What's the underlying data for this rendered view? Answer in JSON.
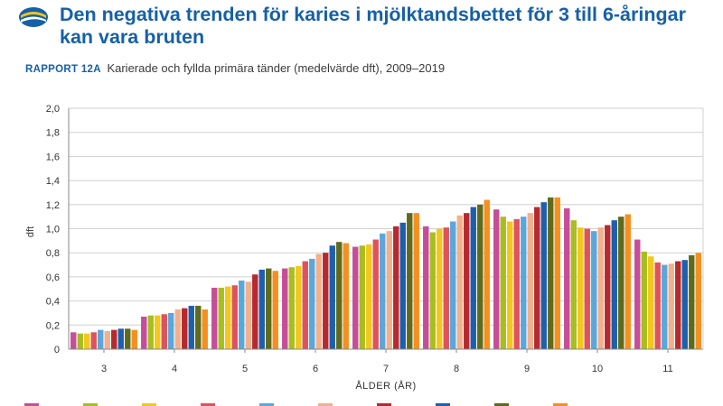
{
  "header": {
    "title": "Den negativa trenden för karies i mjölktandsbettet för 3 till 6-åringar kan vara bruten",
    "subtitle_tag": "RAPPORT 12A",
    "subtitle": "Karierade och fyllda primära tänder (medelvärde dft), 2009–2019"
  },
  "chart_data": {
    "type": "bar",
    "xlabel": "ÅLDER (ÅR)",
    "ylabel": "dft",
    "ylim": [
      0,
      2.0
    ],
    "yticks": [
      "0",
      "0,2",
      "0,4",
      "0,6",
      "0,8",
      "1,0",
      "1,2",
      "1,4",
      "1,6",
      "1,8",
      "2,0"
    ],
    "grid": true,
    "legend_position": "bottom",
    "categories": [
      "3",
      "4",
      "5",
      "6",
      "7",
      "8",
      "9",
      "10",
      "11"
    ],
    "series": [
      {
        "color": "#c64d9a",
        "values": [
          0.14,
          0.27,
          0.51,
          0.67,
          0.85,
          1.02,
          1.16,
          1.17,
          0.91
        ]
      },
      {
        "color": "#a8be1e",
        "values": [
          0.13,
          0.28,
          0.51,
          0.68,
          0.86,
          0.97,
          1.1,
          1.07,
          0.81
        ]
      },
      {
        "color": "#f2c81f",
        "values": [
          0.13,
          0.28,
          0.52,
          0.69,
          0.87,
          1.0,
          1.06,
          1.01,
          0.77
        ]
      },
      {
        "color": "#e0525a",
        "values": [
          0.14,
          0.29,
          0.53,
          0.73,
          0.91,
          1.01,
          1.08,
          1.0,
          0.72
        ]
      },
      {
        "color": "#5aa7dc",
        "values": [
          0.16,
          0.3,
          0.57,
          0.75,
          0.96,
          1.06,
          1.1,
          0.98,
          0.7
        ]
      },
      {
        "color": "#f2b08c",
        "values": [
          0.15,
          0.33,
          0.56,
          0.79,
          0.98,
          1.11,
          1.13,
          1.01,
          0.71
        ]
      },
      {
        "color": "#b52a2f",
        "values": [
          0.16,
          0.34,
          0.62,
          0.8,
          1.02,
          1.13,
          1.18,
          1.03,
          0.73
        ]
      },
      {
        "color": "#1e5fad",
        "values": [
          0.17,
          0.36,
          0.66,
          0.86,
          1.05,
          1.18,
          1.22,
          1.07,
          0.74
        ]
      },
      {
        "color": "#5f6b1b",
        "values": [
          0.17,
          0.36,
          0.67,
          0.89,
          1.13,
          1.2,
          1.26,
          1.1,
          0.78
        ]
      },
      {
        "color": "#f5901e",
        "values": [
          0.16,
          0.33,
          0.65,
          0.88,
          1.13,
          1.24,
          1.26,
          1.12,
          0.8
        ]
      }
    ]
  }
}
